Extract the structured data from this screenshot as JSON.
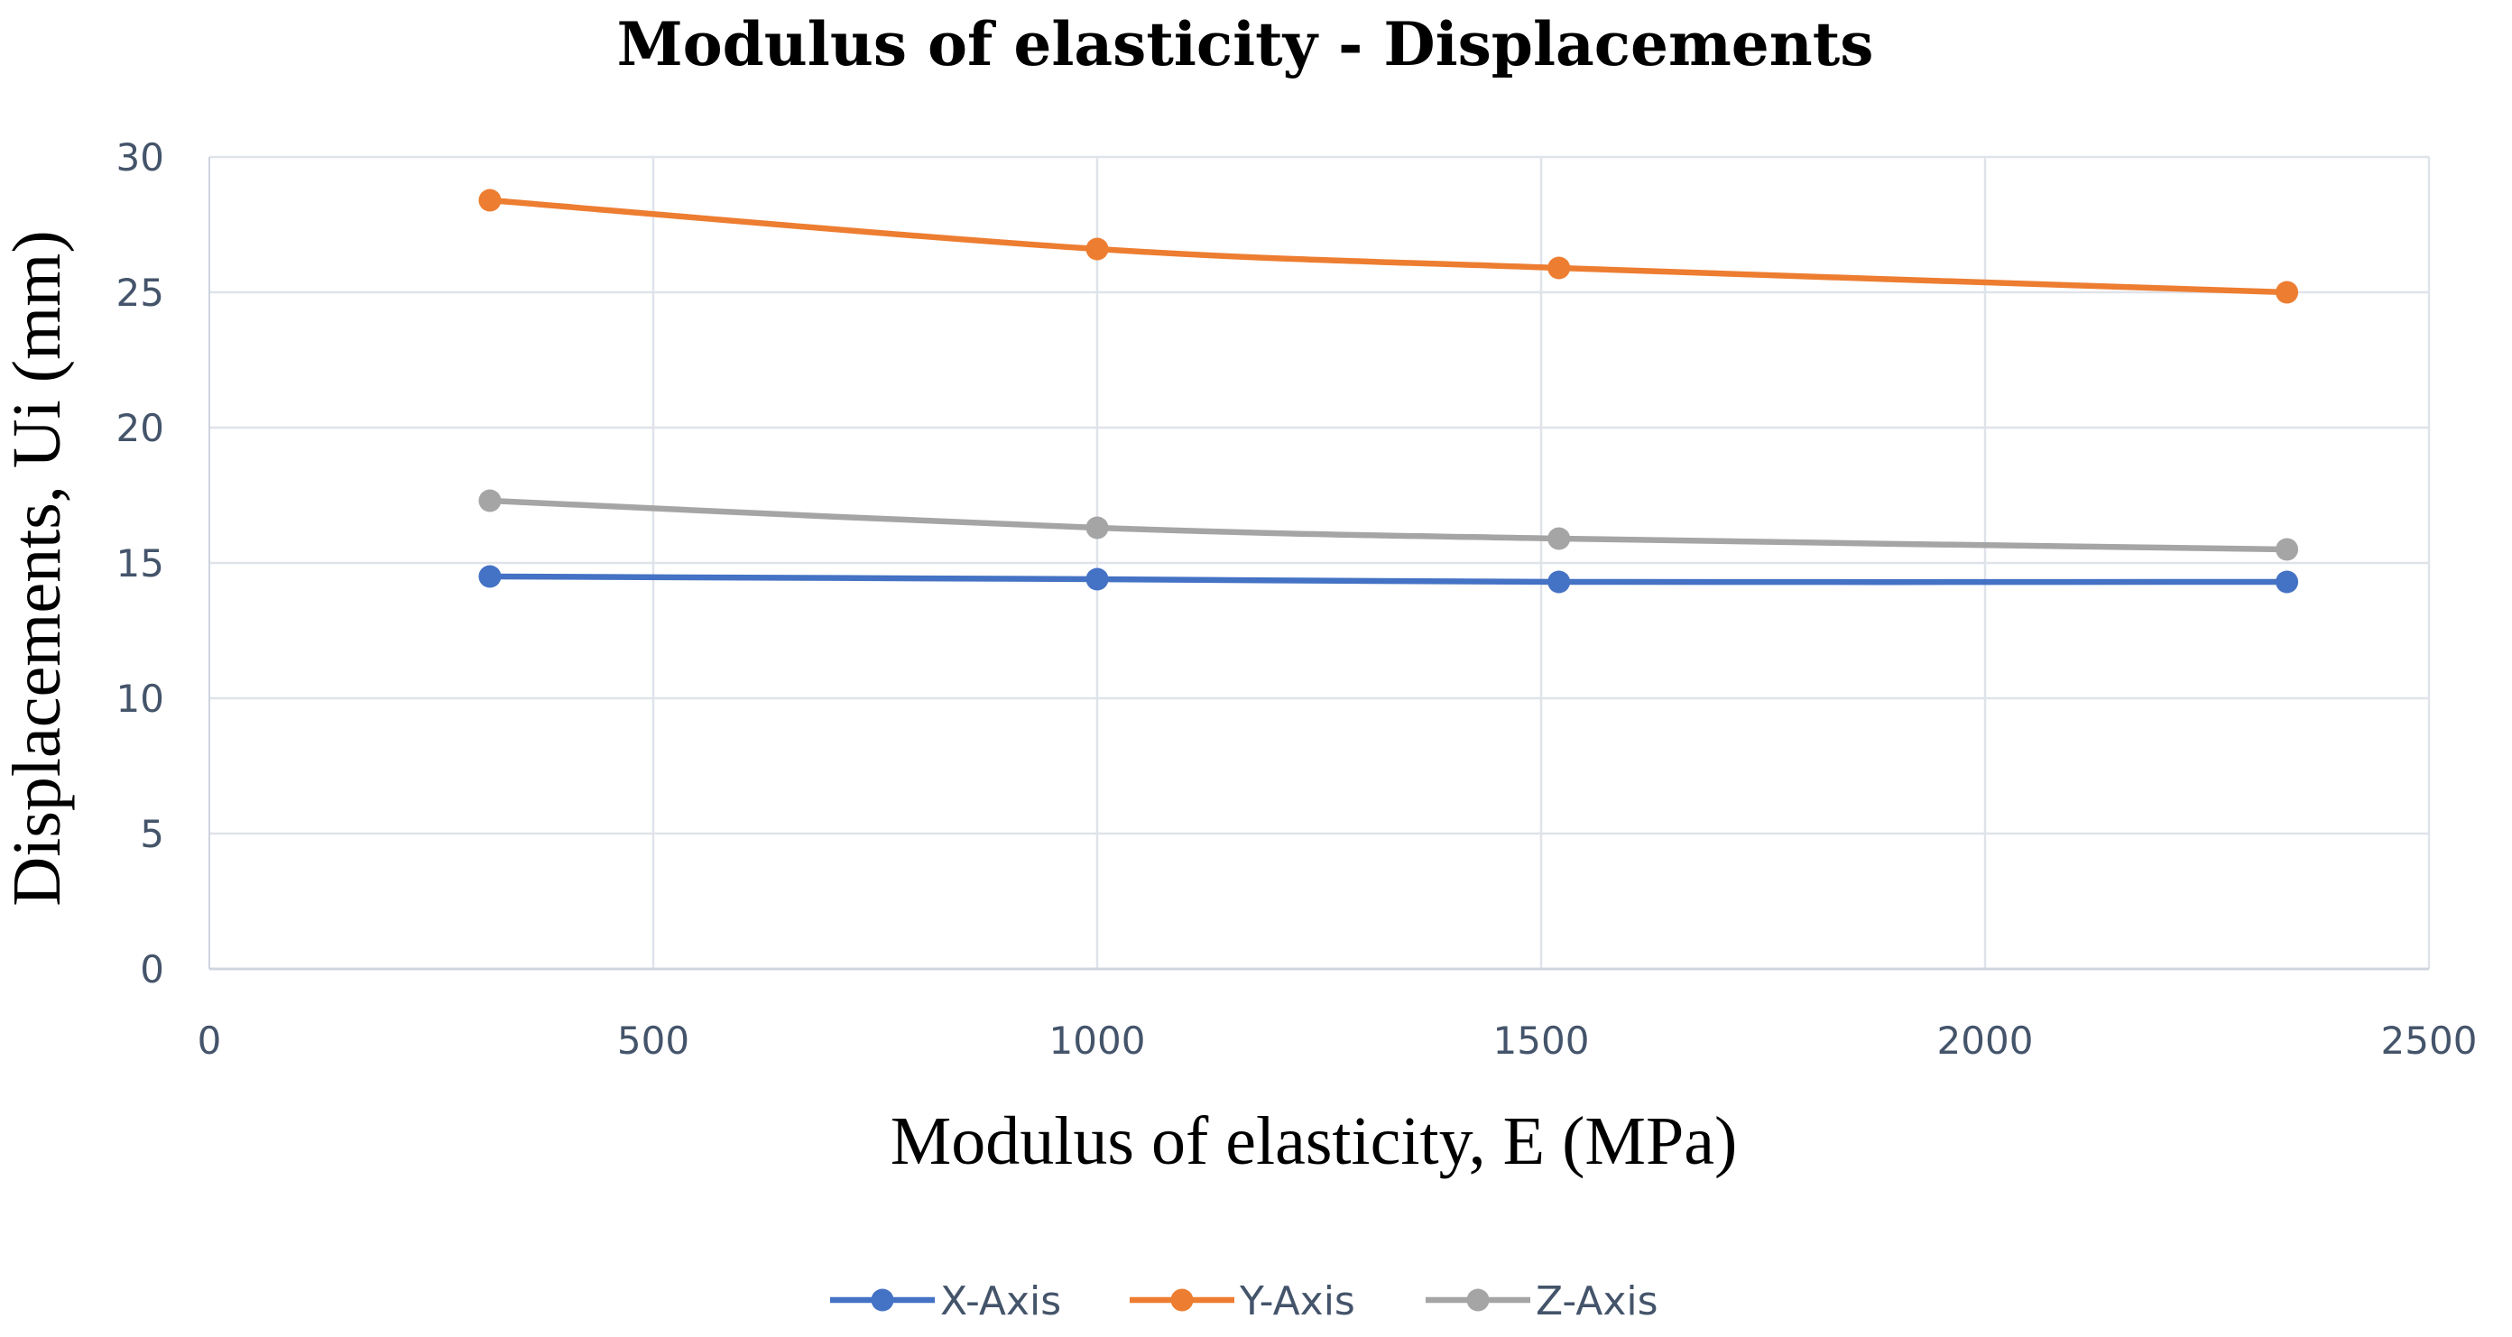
{
  "chart_data": {
    "type": "line",
    "title": "Modulus of elasticity - Displacements",
    "xlabel": "Modulus of elasticity, E (MPa)",
    "ylabel": "Displacements, Ui (mm)",
    "xlim": [
      0,
      2500
    ],
    "ylim": [
      0,
      30
    ],
    "xticks": [
      0,
      500,
      1000,
      1500,
      2000,
      2500
    ],
    "yticks": [
      0,
      5,
      10,
      15,
      20,
      25,
      30
    ],
    "x": [
      316,
      1000,
      1520,
      2340
    ],
    "grid": true,
    "smooth": true,
    "legend_position": "bottom",
    "series": [
      {
        "name": "X-Axis",
        "color": "#4472c4",
        "values": [
          14.5,
          14.4,
          14.3,
          14.3
        ]
      },
      {
        "name": "Y-Axis",
        "color": "#ed7d31",
        "values": [
          28.4,
          26.6,
          25.9,
          25.0
        ]
      },
      {
        "name": "Z-Axis",
        "color": "#a5a5a5",
        "values": [
          17.3,
          16.3,
          15.9,
          15.5
        ]
      }
    ]
  }
}
